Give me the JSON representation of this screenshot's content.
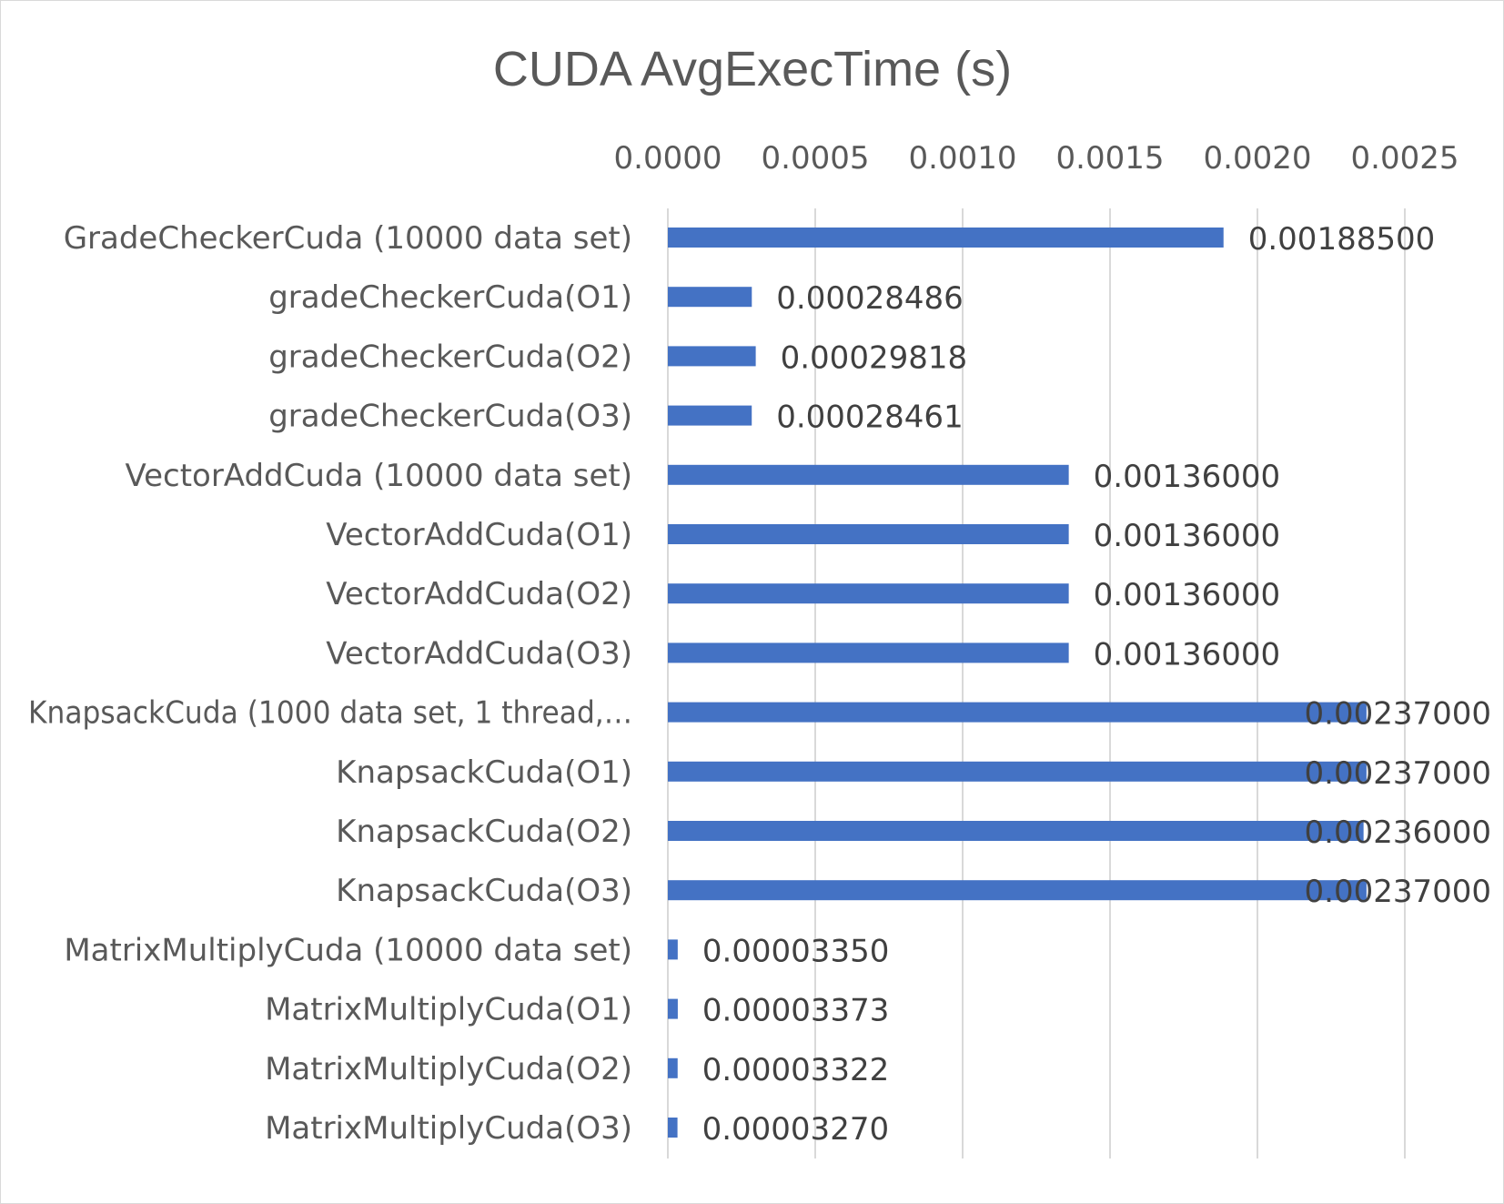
{
  "chart_data": {
    "type": "bar",
    "orientation": "horizontal",
    "title": "CUDA AvgExecTime (s)",
    "xlabel": "",
    "ylabel": "",
    "xlim": [
      0,
      0.0025
    ],
    "x_ticks": [
      0,
      0.0005,
      0.001,
      0.0015,
      0.002,
      0.0025
    ],
    "x_tick_labels": [
      "0.0000",
      "0.0005",
      "0.0010",
      "0.0015",
      "0.0020",
      "0.0025"
    ],
    "x_axis_position": "top",
    "grid": true,
    "legend": "none",
    "colors": {
      "bar": "#4472c4",
      "grid": "#d9d9d9",
      "text": "#595959",
      "label": "#404040",
      "border": "#d9d9d9"
    },
    "categories": [
      "GradeCheckerCuda (10000 data set)",
      "gradeCheckerCuda(O1)",
      "gradeCheckerCuda(O2)",
      "gradeCheckerCuda(O3)",
      "VectorAddCuda (10000 data set)",
      "VectorAddCuda(O1)",
      "VectorAddCuda(O2)",
      "VectorAddCuda(O3)",
      "KnapsackCuda (1000 data set, 1 thread,…",
      "KnapsackCuda(O1)",
      "KnapsackCuda(O2)",
      "KnapsackCuda(O3)",
      "MatrixMultiplyCuda (10000 data set)",
      "MatrixMultiplyCuda(O1)",
      "MatrixMultiplyCuda(O2)",
      "MatrixMultiplyCuda(O3)"
    ],
    "values": [
      0.001885,
      0.00028486,
      0.00029818,
      0.00028461,
      0.00136,
      0.00136,
      0.00136,
      0.00136,
      0.00237,
      0.00237,
      0.00236,
      0.00237,
      3.35e-05,
      3.373e-05,
      3.322e-05,
      3.27e-05
    ],
    "data_labels": [
      "0.00188500",
      "0.00028486",
      "0.00029818",
      "0.00028461",
      "0.00136000",
      "0.00136000",
      "0.00136000",
      "0.00136000",
      "0.00237000",
      "0.00237000",
      "0.00236000",
      "0.00237000",
      "0.00003350",
      "0.00003373",
      "0.00003322",
      "0.00003270"
    ]
  }
}
